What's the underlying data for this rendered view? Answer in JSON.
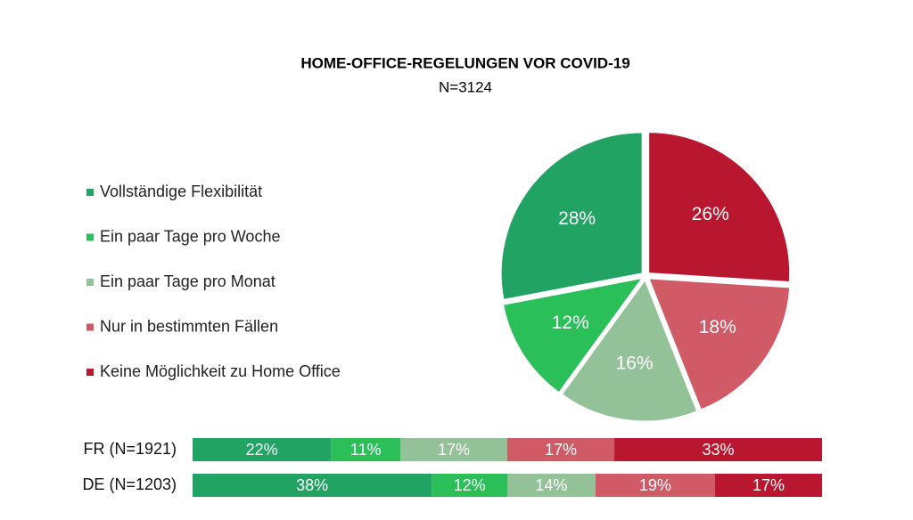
{
  "chart_data": [
    {
      "type": "pie",
      "title": "HOME-OFFICE-REGELUNGEN VOR COVID-19",
      "subtitle": "N=3124",
      "categories": [
        "Vollständige Flexibilität",
        "Ein paar Tage pro Woche",
        "Ein paar Tage pro Monat",
        "Nur in bestimmten Fällen",
        "Keine Möglichkeit zu Home Office"
      ],
      "values": [
        28,
        12,
        16,
        18,
        26
      ],
      "value_labels": [
        "28%",
        "12%",
        "16%",
        "18%",
        "26%"
      ],
      "colors": [
        "#21a463",
        "#2bbf5a",
        "#94c298",
        "#d05b67",
        "#b8172f"
      ],
      "legend": "left"
    },
    {
      "type": "bar",
      "orientation": "horizontal",
      "stacked": true,
      "categories": [
        "FR (N=1921)",
        "DE (N=1203)"
      ],
      "xlim": [
        0,
        100
      ],
      "series": [
        {
          "color": "#21a463",
          "values": [
            22,
            38
          ],
          "value_labels": [
            "22%",
            "38%"
          ]
        },
        {
          "color": "#2bbf5a",
          "values": [
            11,
            12
          ],
          "value_labels": [
            "11%",
            "12%"
          ]
        },
        {
          "color": "#94c298",
          "values": [
            17,
            14
          ],
          "value_labels": [
            "17%",
            "14%"
          ]
        },
        {
          "color": "#d05b67",
          "values": [
            17,
            19
          ],
          "value_labels": [
            "17%",
            "19%"
          ]
        },
        {
          "color": "#b8172f",
          "values": [
            33,
            17
          ],
          "value_labels": [
            "33%",
            "17%"
          ]
        }
      ]
    }
  ]
}
